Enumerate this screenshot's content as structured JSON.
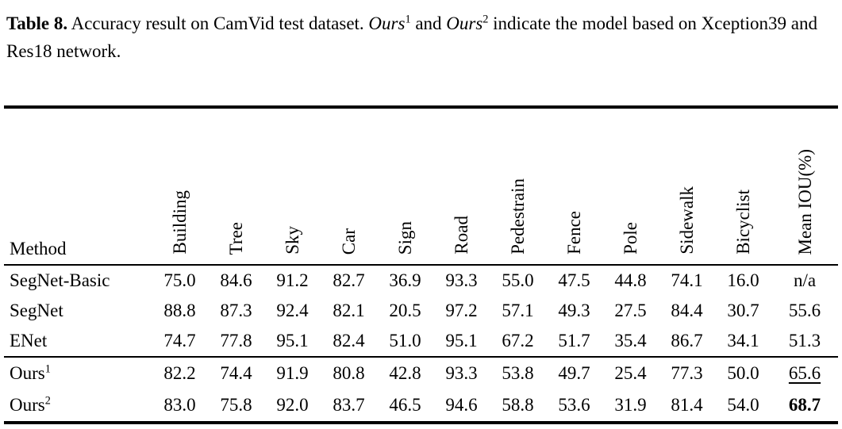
{
  "page": {
    "background_color": "#ffffff",
    "text_color": "#000000"
  },
  "caption": {
    "label": "Table 8.",
    "before_ours": "Accuracy result on CamVid test dataset.",
    "ours1": "Ours",
    "ours1_sup": "1",
    "conjunction": "and",
    "ours2": "Ours",
    "ours2_sup": "2",
    "after_ours": "indicate the model based on Xception39 and Res18 network."
  },
  "table": {
    "method_header": "Method",
    "columns": [
      "Building",
      "Tree",
      "Sky",
      "Car",
      "Sign",
      "Road",
      "Pedestrain",
      "Fence",
      "Pole",
      "Sidewalk",
      "Bicyclist",
      "Mean IOU(%)"
    ],
    "groups": [
      {
        "rows": [
          {
            "method": "SegNet-Basic",
            "method_sup": "",
            "values": [
              "75.0",
              "84.6",
              "91.2",
              "82.7",
              "36.9",
              "93.3",
              "55.0",
              "47.5",
              "44.8",
              "74.1",
              "16.0",
              "n/a"
            ],
            "mean_style": "normal"
          },
          {
            "method": "SegNet",
            "method_sup": "",
            "values": [
              "88.8",
              "87.3",
              "92.4",
              "82.1",
              "20.5",
              "97.2",
              "57.1",
              "49.3",
              "27.5",
              "84.4",
              "30.7",
              "55.6"
            ],
            "mean_style": "normal"
          },
          {
            "method": "ENet",
            "method_sup": "",
            "values": [
              "74.7",
              "77.8",
              "95.1",
              "82.4",
              "51.0",
              "95.1",
              "67.2",
              "51.7",
              "35.4",
              "86.7",
              "34.1",
              "51.3"
            ],
            "mean_style": "normal"
          }
        ]
      },
      {
        "rows": [
          {
            "method": "Ours",
            "method_sup": "1",
            "values": [
              "82.2",
              "74.4",
              "91.9",
              "80.8",
              "42.8",
              "93.3",
              "53.8",
              "49.7",
              "25.4",
              "77.3",
              "50.0",
              "65.6"
            ],
            "mean_style": "underline"
          },
          {
            "method": "Ours",
            "method_sup": "2",
            "values": [
              "83.0",
              "75.8",
              "92.0",
              "83.7",
              "46.5",
              "94.6",
              "58.8",
              "53.6",
              "31.9",
              "81.4",
              "54.0",
              "68.7"
            ],
            "mean_style": "bold"
          }
        ]
      }
    ]
  }
}
